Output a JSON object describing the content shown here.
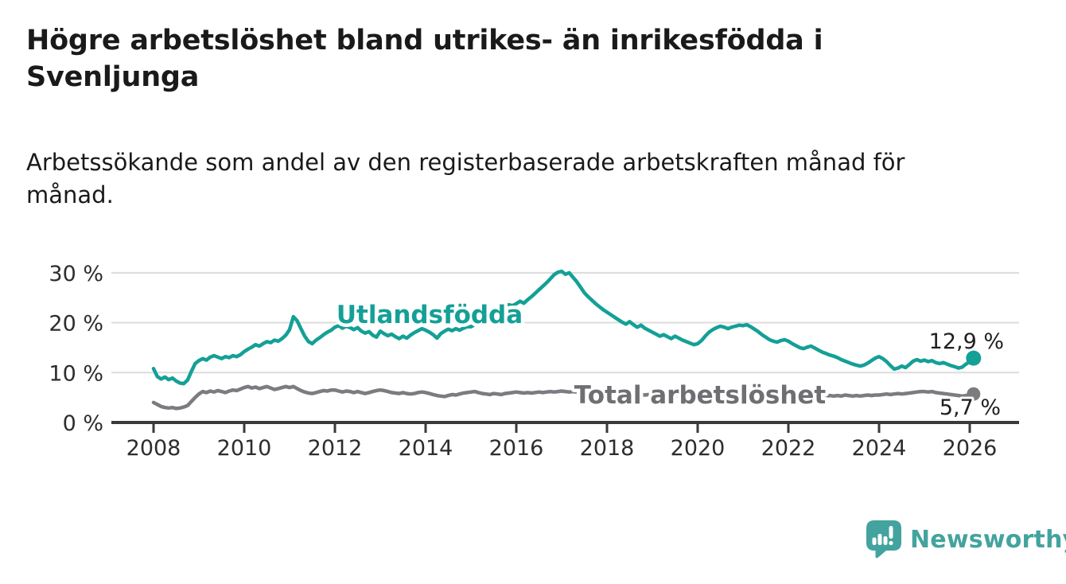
{
  "header": {
    "title": "Högre arbetslöshet bland utrikes- än inrikesfödda i\nSvenljunga",
    "subtitle": "Arbetssökande som andel av den registerbaserade arbetskraften månad för\nmånad."
  },
  "brand": {
    "name": "Newsworthy",
    "color": "#43a39e",
    "icon": "newsworthy-bubble-barchart-icon"
  },
  "chart_data": {
    "type": "line",
    "title": "Högre arbetslöshet bland utrikes- än inrikesfödda i Svenljunga",
    "subtitle": "Arbetssökande som andel av den registerbaserade arbetskraften månad för månad.",
    "unit": "%",
    "frequency": "monthly",
    "start": "2008-01",
    "end": "2026-02",
    "grid": true,
    "x_axis": {
      "tick_years": [
        2008,
        2010,
        2012,
        2014,
        2016,
        2018,
        2020,
        2022,
        2024,
        2026
      ]
    },
    "y_axis": {
      "range": [
        0,
        33
      ],
      "ticks": [
        {
          "value": 0,
          "label": "0 %"
        },
        {
          "value": 10,
          "label": "10 %"
        },
        {
          "value": 20,
          "label": "20 %"
        },
        {
          "value": 30,
          "label": "30 %"
        }
      ]
    },
    "series": [
      {
        "name": "Utlandsfödda",
        "color": "#14a096",
        "label_color": "#14a096",
        "end_label": "12,9 %",
        "last_value": 12.9,
        "values": [
          10.8,
          9.2,
          8.7,
          9.1,
          8.6,
          8.9,
          8.3,
          7.9,
          7.8,
          8.5,
          10.2,
          11.8,
          12.4,
          12.8,
          12.5,
          13.1,
          13.4,
          13.1,
          12.8,
          13.2,
          13.0,
          13.4,
          13.2,
          13.6,
          14.2,
          14.7,
          15.1,
          15.6,
          15.3,
          15.8,
          16.2,
          16.0,
          16.5,
          16.3,
          16.8,
          17.5,
          18.6,
          21.2,
          20.4,
          18.8,
          17.3,
          16.2,
          15.8,
          16.5,
          17.0,
          17.6,
          18.1,
          18.5,
          19.1,
          19.4,
          18.9,
          19.3,
          19.0,
          18.6,
          19.0,
          18.3,
          17.9,
          18.2,
          17.5,
          17.1,
          18.3,
          17.8,
          17.4,
          17.7,
          17.2,
          16.8,
          17.3,
          16.9,
          17.5,
          18.0,
          18.4,
          18.8,
          18.5,
          18.1,
          17.6,
          16.9,
          17.8,
          18.3,
          18.7,
          18.4,
          18.8,
          18.5,
          18.9,
          19.2,
          19.2,
          19.6,
          20.1,
          20.5,
          21.0,
          21.4,
          21.9,
          22.3,
          22.8,
          23.2,
          23.6,
          23.4,
          23.8,
          24.3,
          23.9,
          24.6,
          25.2,
          25.9,
          26.6,
          27.3,
          28.0,
          28.8,
          29.6,
          30.1,
          30.3,
          29.7,
          30.0,
          29.1,
          28.2,
          27.1,
          26.0,
          25.2,
          24.5,
          23.8,
          23.2,
          22.6,
          22.1,
          21.6,
          21.1,
          20.6,
          20.1,
          19.7,
          20.2,
          19.6,
          19.1,
          19.5,
          18.9,
          18.5,
          18.1,
          17.7,
          17.3,
          17.6,
          17.2,
          16.8,
          17.3,
          16.9,
          16.5,
          16.2,
          15.9,
          15.6,
          15.8,
          16.4,
          17.3,
          18.1,
          18.6,
          19.0,
          19.3,
          19.1,
          18.8,
          19.1,
          19.3,
          19.5,
          19.4,
          19.6,
          19.2,
          18.7,
          18.2,
          17.6,
          17.1,
          16.6,
          16.3,
          16.1,
          16.4,
          16.6,
          16.3,
          15.8,
          15.4,
          15.0,
          14.8,
          15.1,
          15.3,
          14.9,
          14.5,
          14.1,
          13.8,
          13.5,
          13.3,
          13.0,
          12.6,
          12.3,
          12.0,
          11.7,
          11.5,
          11.3,
          11.5,
          11.9,
          12.4,
          12.9,
          13.2,
          12.8,
          12.2,
          11.4,
          10.7,
          10.9,
          11.3,
          11.0,
          11.6,
          12.3,
          12.6,
          12.3,
          12.5,
          12.2,
          12.4,
          12.0,
          11.8,
          12.0,
          11.7,
          11.4,
          11.2,
          10.9,
          11.1,
          11.7,
          12.2,
          12.9
        ]
      },
      {
        "name": "Total arbetslöshet",
        "color": "#7b7b80",
        "label_color": "#6e6e73",
        "end_label": "5,7 %",
        "last_value": 5.7,
        "values": [
          4.0,
          3.6,
          3.2,
          3.0,
          2.9,
          3.0,
          2.8,
          2.9,
          3.1,
          3.4,
          4.2,
          5.0,
          5.7,
          6.2,
          6.0,
          6.3,
          6.1,
          6.4,
          6.2,
          6.0,
          6.3,
          6.5,
          6.4,
          6.7,
          7.0,
          7.2,
          6.9,
          7.1,
          6.8,
          7.0,
          7.2,
          6.9,
          6.6,
          6.8,
          7.0,
          7.2,
          7.0,
          7.2,
          6.8,
          6.4,
          6.1,
          5.9,
          5.8,
          6.0,
          6.2,
          6.4,
          6.3,
          6.5,
          6.5,
          6.3,
          6.1,
          6.3,
          6.2,
          6.0,
          6.2,
          6.0,
          5.8,
          6.0,
          6.2,
          6.4,
          6.5,
          6.4,
          6.2,
          6.0,
          5.9,
          5.8,
          6.0,
          5.8,
          5.7,
          5.8,
          6.0,
          6.1,
          6.0,
          5.8,
          5.6,
          5.4,
          5.3,
          5.2,
          5.4,
          5.6,
          5.5,
          5.7,
          5.9,
          6.0,
          6.1,
          6.2,
          6.0,
          5.8,
          5.7,
          5.6,
          5.8,
          5.7,
          5.6,
          5.8,
          5.9,
          6.0,
          6.1,
          6.0,
          5.9,
          6.0,
          5.9,
          6.0,
          6.1,
          6.0,
          6.1,
          6.2,
          6.1,
          6.2,
          6.3,
          6.2,
          6.1,
          6.2,
          6.1,
          6.0,
          6.1,
          6.0,
          5.9,
          5.8,
          5.9,
          5.8,
          5.9,
          5.8,
          5.7,
          5.8,
          5.7,
          5.6,
          5.7,
          5.6,
          5.5,
          5.6,
          5.5,
          5.6,
          5.7,
          5.6,
          5.5,
          5.6,
          5.5,
          5.4,
          5.5,
          5.4,
          5.3,
          5.4,
          5.5,
          5.6,
          5.7,
          5.8,
          6.0,
          6.1,
          6.0,
          5.9,
          5.8,
          5.7,
          5.6,
          5.5,
          5.4,
          5.3,
          5.2,
          5.1,
          5.0,
          5.1,
          5.0,
          4.9,
          5.0,
          5.1,
          5.0,
          5.1,
          5.2,
          5.1,
          5.0,
          5.1,
          5.0,
          5.2,
          5.1,
          5.3,
          5.2,
          5.4,
          5.3,
          5.2,
          5.3,
          5.4,
          5.3,
          5.4,
          5.3,
          5.5,
          5.4,
          5.3,
          5.4,
          5.3,
          5.4,
          5.5,
          5.4,
          5.5,
          5.5,
          5.6,
          5.7,
          5.6,
          5.7,
          5.8,
          5.7,
          5.8,
          5.9,
          6.0,
          6.1,
          6.2,
          6.2,
          6.1,
          6.2,
          6.0,
          5.9,
          5.8,
          5.7,
          5.6,
          5.5,
          5.4,
          5.3,
          5.4,
          5.5,
          5.7
        ]
      }
    ]
  }
}
